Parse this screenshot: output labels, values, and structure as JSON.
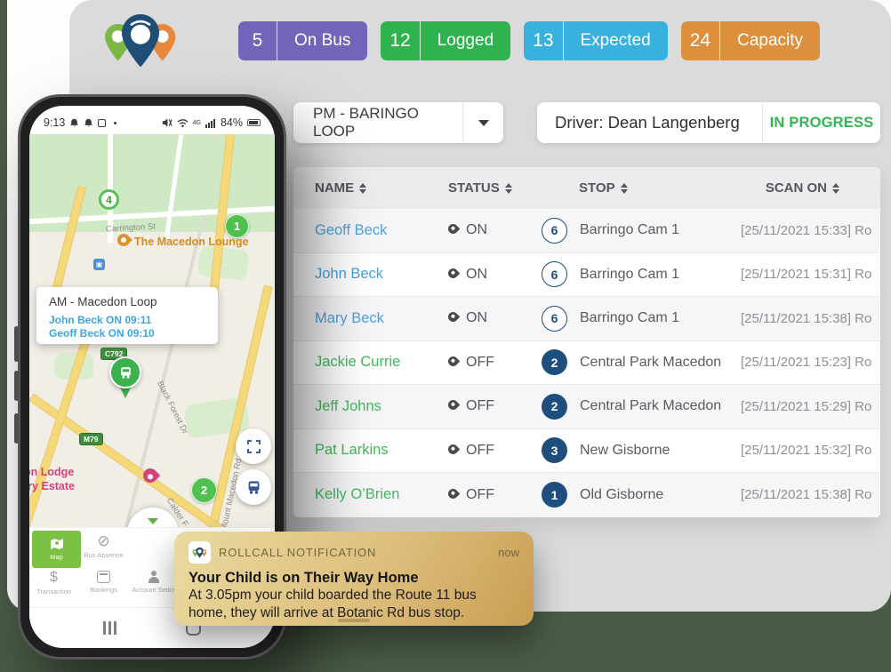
{
  "colors": {
    "page_bg": "#4a5b46",
    "panel": "#dbdbdc",
    "link_blue": "#4aa3db",
    "link_green": "#41b95c",
    "navy": "#1d4e7e",
    "progress_green": "#2eb84f"
  },
  "logo": {
    "icon": "rollcall-pins-logo"
  },
  "stats": [
    {
      "value": "5",
      "label": "On Bus",
      "color": "#7264b8"
    },
    {
      "value": "12",
      "label": "Logged",
      "color": "#2eb34e"
    },
    {
      "value": "13",
      "label": "Expected",
      "color": "#38b1de"
    },
    {
      "value": "24",
      "label": "Capacity",
      "color": "#de8f3d"
    }
  ],
  "toolbar": {
    "route": "PM - BARINGO LOOP",
    "driver": "Driver: Dean Langenberg",
    "status": "IN PROGRESS"
  },
  "table": {
    "headers": [
      "NAME",
      "STATUS",
      "STOP",
      "SCAN ON"
    ],
    "rows": [
      {
        "name": "Geoff Beck",
        "name_color": "#4aa3db",
        "status": "ON",
        "stop_num": "6",
        "stop_style": "outline",
        "stop": "Barringo Cam 1",
        "scan": "[25/11/2021 15:33] Ro"
      },
      {
        "name": "John Beck",
        "name_color": "#4aa3db",
        "status": "ON",
        "stop_num": "6",
        "stop_style": "outline",
        "stop": "Barringo Cam 1",
        "scan": "[25/11/2021 15:31] Ro"
      },
      {
        "name": "Mary Beck",
        "name_color": "#4aa3db",
        "status": "ON",
        "stop_num": "6",
        "stop_style": "outline",
        "stop": "Barringo Cam 1",
        "scan": "[25/11/2021 15:38] Ro"
      },
      {
        "name": "Jackie Currie",
        "name_color": "#41b95c",
        "status": "OFF",
        "stop_num": "2",
        "stop_style": "filled",
        "stop": "Central Park Macedon",
        "scan": "[25/11/2021 15:23] Ro"
      },
      {
        "name": "Jeff Johns",
        "name_color": "#41b95c",
        "status": "OFF",
        "stop_num": "2",
        "stop_style": "filled",
        "stop": "Central Park Macedon",
        "scan": "[25/11/2021 15:29] Ro"
      },
      {
        "name": "Pat Larkins",
        "name_color": "#41b95c",
        "status": "OFF",
        "stop_num": "3",
        "stop_style": "filled",
        "stop": "New Gisborne",
        "scan": "[25/11/2021 15:32] Ro"
      },
      {
        "name": "Kelly O’Brien",
        "name_color": "#41b95c",
        "status": "OFF",
        "stop_num": "1",
        "stop_style": "filled",
        "stop": "Old Gisborne",
        "scan": "[25/11/2021 15:38] Ro"
      }
    ]
  },
  "phone": {
    "status_bar": {
      "time": "9:13",
      "network": "4G",
      "battery": "84%"
    },
    "map": {
      "info_card": {
        "title": "AM - Macedon Loop",
        "lines": [
          "John Beck ON 09:11",
          "Geoff Beck ON 09:10"
        ]
      },
      "road_badges": [
        "C792",
        "M79"
      ],
      "street_labels": {
        "carrington": "Carrington St",
        "black_forest": "Black Forest Dr",
        "calder": "Calder F",
        "mount_macedon": "Mount Macedon Rd"
      },
      "pois": {
        "lounge": "The Macedon Lounge",
        "lodge_line1": "on Lodge",
        "lodge_line2": "try Estate"
      },
      "stop_markers": [
        "4",
        "1",
        "2"
      ]
    },
    "nav": {
      "row1": [
        {
          "label": "Map"
        },
        {
          "label": "Bus Absence"
        }
      ],
      "row2": [
        {
          "label": "Transaction"
        },
        {
          "label": "Bookings"
        },
        {
          "label": "Account Settin"
        }
      ]
    }
  },
  "notification": {
    "app_name": "ROLLCALL NOTIFICATION",
    "time": "now",
    "title": "Your Child is on Their Way Home",
    "body_line1": "At 3.05pm your child boarded the Route 11 bus",
    "body_line2": "home, they will arrive at Botanic Rd bus stop."
  }
}
